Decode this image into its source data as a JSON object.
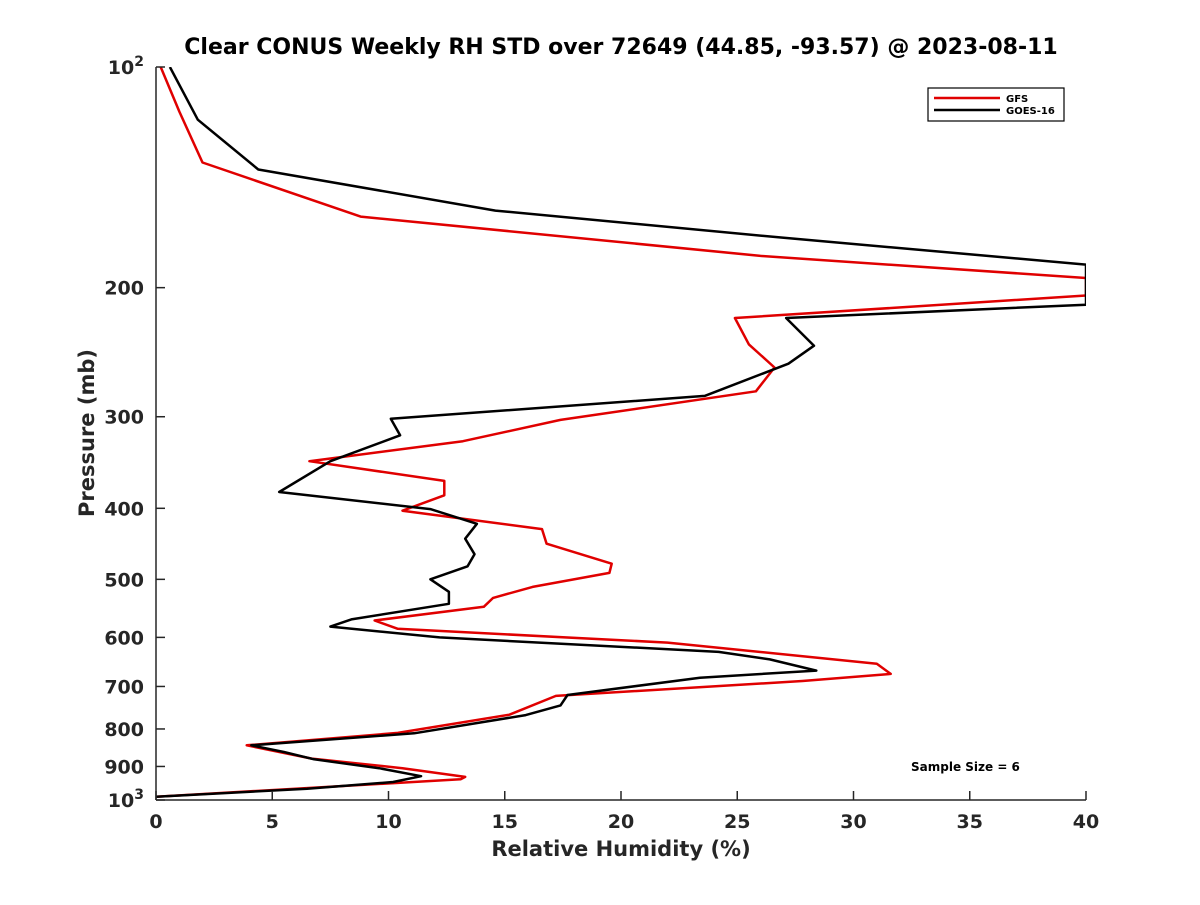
{
  "chart_data": {
    "type": "line",
    "title": "Clear CONUS Weekly RH STD over 72649 (44.85, -93.57) @ 2023-08-11",
    "xlabel": "Relative Humidity (%)",
    "ylabel": "Pressure (mb)",
    "xlim": [
      0,
      40
    ],
    "ylim": [
      100,
      1000
    ],
    "y_scale": "log",
    "y_reversed": true,
    "grid": false,
    "legend_position": "top-right",
    "x_ticks": [
      "0",
      "5",
      "10",
      "15",
      "20",
      "25",
      "30",
      "35",
      "40"
    ],
    "y_ticks": [
      {
        "value": 100,
        "base": "10",
        "exp": "2"
      },
      {
        "value": 200,
        "label": "200"
      },
      {
        "value": 300,
        "label": "300"
      },
      {
        "value": 400,
        "label": "400"
      },
      {
        "value": 500,
        "label": "500"
      },
      {
        "value": 600,
        "label": "600"
      },
      {
        "value": 700,
        "label": "700"
      },
      {
        "value": 800,
        "label": "800"
      },
      {
        "value": 900,
        "label": "900"
      },
      {
        "value": 1000,
        "base": "10",
        "exp": "3"
      }
    ],
    "annotation": "Sample Size = 6",
    "series": [
      {
        "name": "GFS",
        "color": "#e00000",
        "points": [
          [
            0.2,
            100
          ],
          [
            1.0,
            115
          ],
          [
            2.0,
            135
          ],
          [
            8.8,
            160
          ],
          [
            26,
            181
          ],
          [
            40,
            194
          ],
          [
            40,
            205
          ],
          [
            24.9,
            220
          ],
          [
            25.5,
            239
          ],
          [
            26.6,
            257
          ],
          [
            25.8,
            277
          ],
          [
            17.4,
            303
          ],
          [
            13.2,
            324
          ],
          [
            6.6,
            345
          ],
          [
            12.4,
            367
          ],
          [
            12.4,
            384
          ],
          [
            10.6,
            403
          ],
          [
            16.6,
            427
          ],
          [
            16.8,
            447
          ],
          [
            19.6,
            476
          ],
          [
            19.5,
            490
          ],
          [
            16.2,
            512
          ],
          [
            14.5,
            530
          ],
          [
            14.1,
            545
          ],
          [
            9.4,
            569
          ],
          [
            10.4,
            584
          ],
          [
            22.0,
            610
          ],
          [
            31.0,
            652
          ],
          [
            31.6,
            673
          ],
          [
            27.8,
            688
          ],
          [
            17.2,
            721
          ],
          [
            15.2,
            765
          ],
          [
            10.4,
            810
          ],
          [
            3.9,
            842
          ],
          [
            6.7,
            878
          ],
          [
            10.6,
            905
          ],
          [
            13.3,
            930
          ],
          [
            13.1,
            937
          ],
          [
            6.0,
            965
          ],
          [
            0.0,
            990
          ]
        ]
      },
      {
        "name": "GOES-16",
        "color": "#000000",
        "points": [
          [
            0.6,
            100
          ],
          [
            1.8,
            118
          ],
          [
            4.4,
            138
          ],
          [
            14.6,
            157
          ],
          [
            27,
            171
          ],
          [
            40,
            186
          ],
          [
            40,
            211
          ],
          [
            27.1,
            220
          ],
          [
            28.3,
            240
          ],
          [
            27.2,
            254
          ],
          [
            23.6,
            281
          ],
          [
            10.1,
            302
          ],
          [
            10.5,
            318
          ],
          [
            7.5,
            345
          ],
          [
            5.3,
            380
          ],
          [
            11.8,
            401
          ],
          [
            13.8,
            420
          ],
          [
            13.3,
            440
          ],
          [
            13.7,
            462
          ],
          [
            13.4,
            480
          ],
          [
            11.8,
            500
          ],
          [
            12.6,
            520
          ],
          [
            12.6,
            540
          ],
          [
            8.4,
            567
          ],
          [
            7.5,
            580
          ],
          [
            12.2,
            600
          ],
          [
            24.2,
            628
          ],
          [
            26.4,
            643
          ],
          [
            28.4,
            666
          ],
          [
            23.4,
            681
          ],
          [
            17.7,
            719
          ],
          [
            17.4,
            743
          ],
          [
            15.9,
            766
          ],
          [
            11.1,
            811
          ],
          [
            4.1,
            842
          ],
          [
            5.5,
            860
          ],
          [
            6.8,
            880
          ],
          [
            9.6,
            905
          ],
          [
            11.4,
            928
          ],
          [
            10.2,
            945
          ],
          [
            6.5,
            965
          ],
          [
            0.0,
            990
          ]
        ]
      }
    ]
  }
}
